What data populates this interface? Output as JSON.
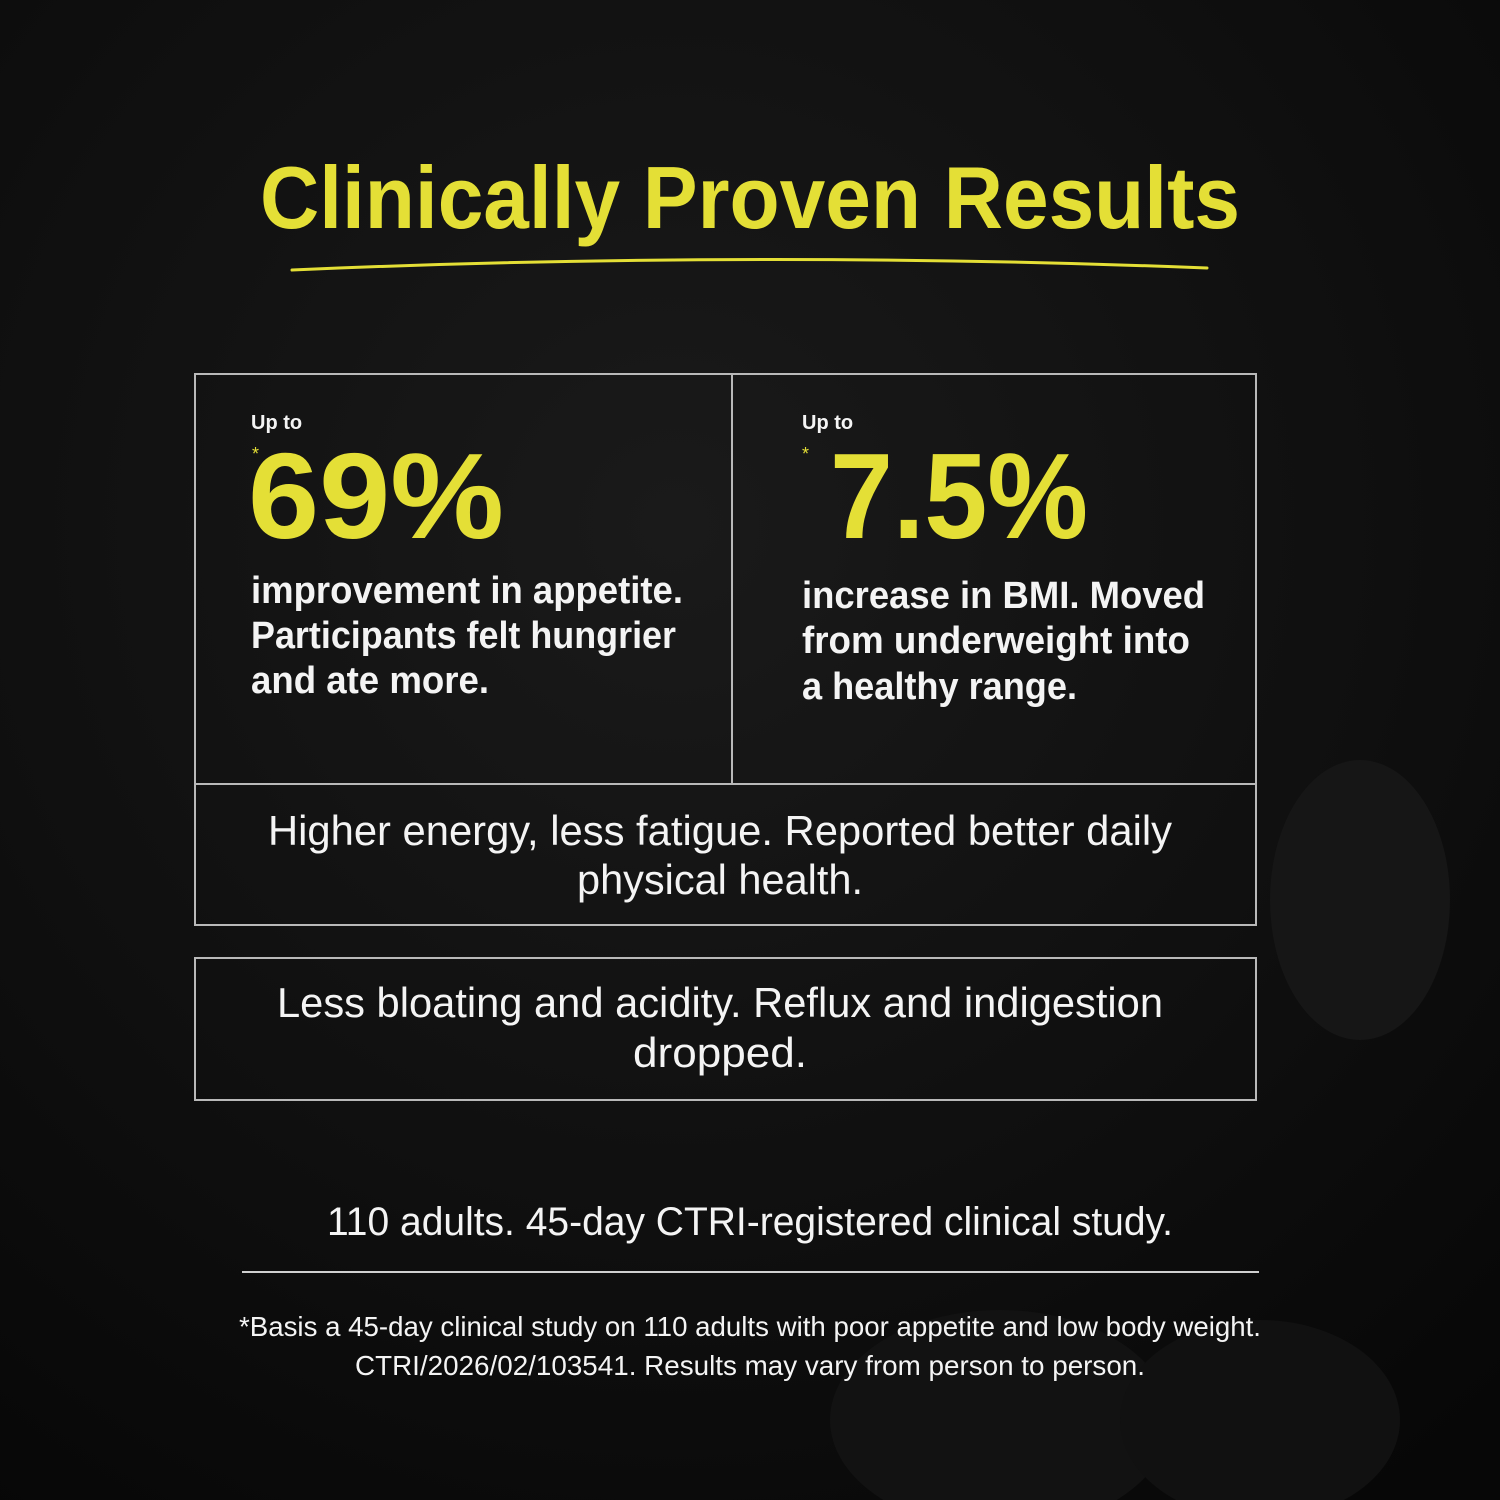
{
  "header": {
    "title": "Clinically Proven Results"
  },
  "stats": [
    {
      "prefix": "Up to",
      "marker": "*",
      "value": "69%",
      "description": [
        "improvement in appetite.",
        "Participants felt hungrier",
        "and ate more."
      ]
    },
    {
      "prefix": "Up to",
      "marker": "*",
      "value": "7.5%",
      "description": [
        "increase in BMI. Moved",
        "from underweight into",
        "a healthy range."
      ]
    }
  ],
  "benefits": [
    [
      "Higher energy, less fatigue. Reported better daily",
      "physical health."
    ],
    [
      "Less bloating and acidity. Reflux and indigestion",
      "dropped."
    ]
  ],
  "study": "110 adults. 45-day CTRI-registered clinical study.",
  "footnote": [
    "*Basis a 45-day clinical study on 110 adults with poor appetite and low body weight.",
    "CTRI/2026/02/103541. Results may vary from person to person."
  ]
}
